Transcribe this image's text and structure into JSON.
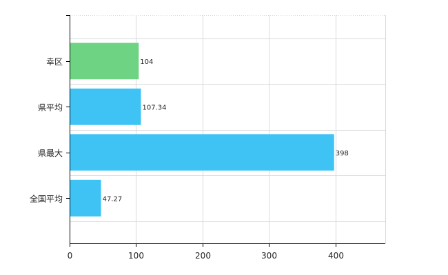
{
  "chart_data": {
    "type": "bar",
    "orientation": "horizontal",
    "categories": [
      "幸区",
      "県平均",
      "県最大",
      "全国平均"
    ],
    "values": [
      104,
      107.34,
      398,
      47.27
    ],
    "value_labels": [
      "104",
      "107.34",
      "398",
      "47.27"
    ],
    "colors": [
      "#6ed383",
      "#3fc3f5",
      "#3fc3f5",
      "#3fc3f5"
    ],
    "xlim": [
      0,
      475
    ],
    "xticks": [
      0,
      100,
      200,
      300,
      400
    ],
    "grid": true,
    "legend": "none",
    "title": "",
    "xlabel": "",
    "ylabel": ""
  }
}
